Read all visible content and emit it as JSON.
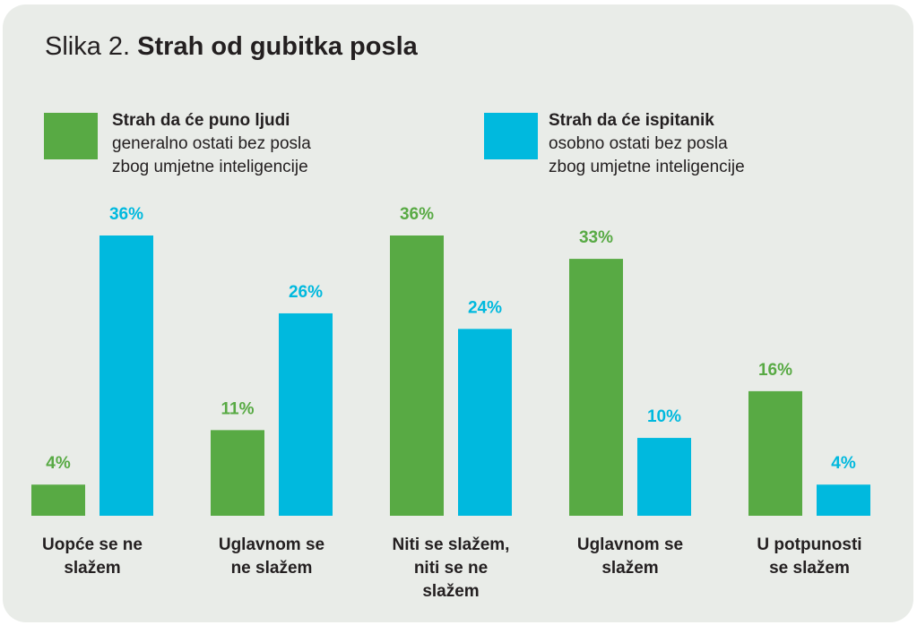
{
  "title": {
    "lead": "Slika 2. ",
    "main": "Strah od gubitka posla"
  },
  "colors": {
    "green": "#58aa44",
    "blue": "#00b9de",
    "background": "#e9ece8"
  },
  "legend": [
    {
      "line1": "Strah da će puno ljudi",
      "line2": "generalno ostati bez posla",
      "line3": "zbog umjetne inteligencije",
      "color": "#58aa44"
    },
    {
      "line1": "Strah da će ispitanik",
      "line2": "osobno ostati bez posla",
      "line3": "zbog umjetne inteligencije",
      "color": "#00b9de"
    }
  ],
  "chart_data": {
    "type": "bar",
    "categories": [
      "Uopće se ne slažem",
      "Uglavnom se ne slažem",
      "Niti se slažem, niti se ne slažem",
      "Uglavnom se slažem",
      "U potpunosti se slažem"
    ],
    "category_lines": [
      [
        "Uopće se ne",
        "slažem"
      ],
      [
        "Uglavnom se",
        "ne slažem"
      ],
      [
        "Niti se slažem,",
        "niti se ne",
        "slažem"
      ],
      [
        "Uglavnom se",
        "slažem"
      ],
      [
        "U potpunosti",
        "se slažem"
      ]
    ],
    "series": [
      {
        "name": "Strah da će puno ljudi generalno ostati bez posla zbog umjetne inteligencije",
        "values": [
          4,
          11,
          36,
          33,
          16
        ],
        "labels": [
          "4%",
          "11%",
          "36%",
          "33%",
          "16%"
        ],
        "color": "#58aa44"
      },
      {
        "name": "Strah da će ispitanik osobno ostati bez posla zbog umjetne inteligencije",
        "values": [
          36,
          26,
          24,
          10,
          4
        ],
        "labels": [
          "36%",
          "26%",
          "24%",
          "10%",
          "4%"
        ],
        "color": "#00b9de"
      }
    ],
    "ylim": [
      0,
      36
    ],
    "grid": false,
    "legend_position": "top"
  }
}
